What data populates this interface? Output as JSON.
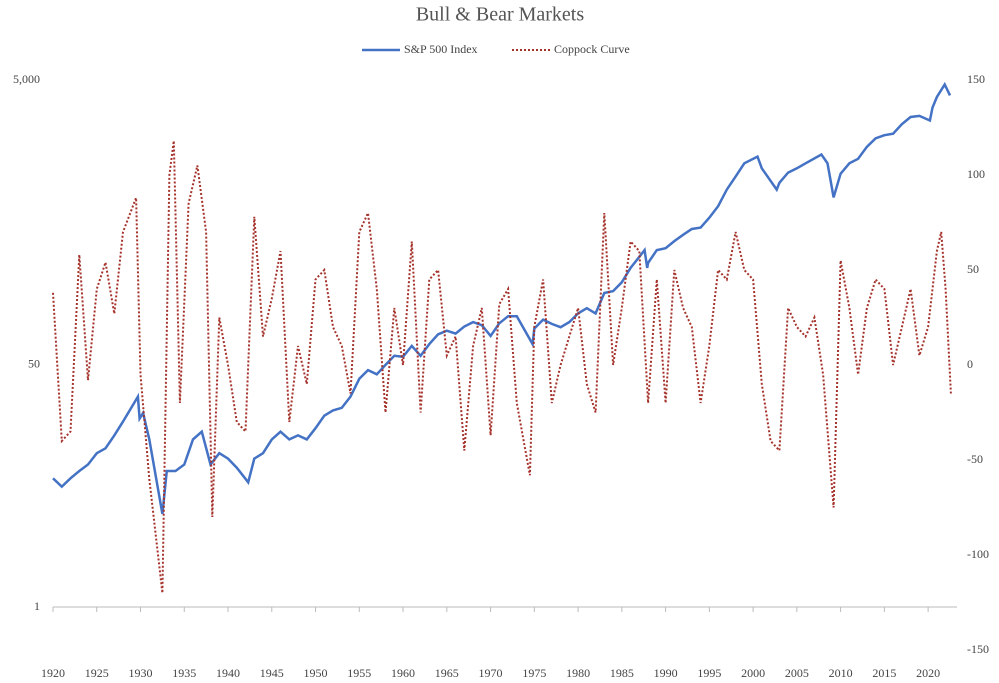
{
  "chart_data": {
    "type": "line",
    "title": "Bull & Bear Markets",
    "xlim": [
      1920,
      2023.3
    ],
    "xticks": [
      1920,
      1925,
      1930,
      1935,
      1940,
      1945,
      1950,
      1955,
      1960,
      1965,
      1970,
      1975,
      1980,
      1985,
      1990,
      1995,
      2000,
      2005,
      2010,
      2015,
      2020
    ],
    "ylim": [
      1,
      5000
    ],
    "yticks": [
      1,
      50,
      {
        "value": 5000,
        "label": "5,000"
      }
    ],
    "ylog": true,
    "y2lim": [
      -150,
      150
    ],
    "y2ticks": [
      -150,
      -100,
      -50,
      0,
      50,
      100,
      150
    ],
    "grid": false,
    "legend": "top",
    "series": [
      {
        "name": "S&P 500 Index",
        "color": "#4472c4",
        "dash": false,
        "x": [
          1920,
          1921,
          1922,
          1923,
          1924,
          1925,
          1926,
          1927,
          1928,
          1929.7,
          1929.9,
          1930.3,
          1931,
          1932.5,
          1933,
          1934,
          1935,
          1936,
          1937,
          1938,
          1939,
          1940,
          1941,
          1942.3,
          1943,
          1944,
          1945,
          1946,
          1947,
          1948,
          1949,
          1950,
          1951,
          1952,
          1953,
          1954,
          1955,
          1956,
          1957,
          1958,
          1959,
          1960,
          1961,
          1962,
          1963,
          1964,
          1965,
          1966,
          1967,
          1968,
          1969,
          1970,
          1971,
          1972,
          1973,
          1974.8,
          1975,
          1976,
          1977,
          1978,
          1979,
          1980,
          1981,
          1982,
          1983,
          1984,
          1985,
          1986,
          1987.6,
          1987.9,
          1988,
          1989,
          1990,
          1991,
          1992,
          1993,
          1994,
          1995,
          1996,
          1997,
          1998,
          1999,
          2000.5,
          2001,
          2002.7,
          2003,
          2004,
          2005,
          2006,
          2007.8,
          2008.5,
          2009.2,
          2010,
          2011,
          2012,
          2013,
          2014,
          2015,
          2016,
          2017,
          2018,
          2019,
          2020.2,
          2020.5,
          2021,
          2021.9,
          2022.5
        ],
        "values": [
          8,
          7,
          8,
          9,
          10,
          12,
          13,
          16,
          20,
          30,
          21,
          23,
          15,
          4.5,
          9,
          9,
          10,
          15,
          17,
          10,
          12,
          11,
          9.5,
          7.5,
          11,
          12,
          15,
          17,
          15,
          16,
          15,
          18,
          22,
          24,
          25,
          30,
          40,
          46,
          43,
          50,
          58,
          57,
          68,
          58,
          70,
          82,
          87,
          83,
          93,
          100,
          95,
          80,
          98,
          110,
          110,
          70,
          90,
          104,
          97,
          92,
          100,
          115,
          125,
          115,
          160,
          165,
          190,
          240,
          320,
          240,
          260,
          320,
          330,
          370,
          410,
          450,
          460,
          540,
          650,
          850,
          1050,
          1300,
          1450,
          1200,
          850,
          950,
          1120,
          1200,
          1300,
          1500,
          1300,
          750,
          1100,
          1300,
          1400,
          1700,
          1950,
          2050,
          2100,
          2450,
          2750,
          2800,
          2600,
          3200,
          3800,
          4650,
          3900
        ]
      },
      {
        "name": "Coppock Curve",
        "color": "#a5332c",
        "dash": true,
        "axis": "y2",
        "x": [
          1920,
          1921,
          1922,
          1923,
          1924,
          1925,
          1926,
          1927,
          1928,
          1929.5,
          1930,
          1931,
          1932.5,
          1933.3,
          1933.8,
          1934.5,
          1935.5,
          1936.5,
          1937.5,
          1938.2,
          1939,
          1940,
          1941,
          1942,
          1943,
          1944,
          1945,
          1946,
          1947,
          1948,
          1949,
          1950,
          1951,
          1952,
          1953,
          1954,
          1955,
          1956,
          1957,
          1958,
          1959,
          1960,
          1961,
          1962,
          1963,
          1964,
          1965,
          1966,
          1967,
          1968,
          1969,
          1970,
          1971,
          1972,
          1973,
          1974.5,
          1975,
          1976,
          1977,
          1978,
          1979,
          1980,
          1981,
          1982,
          1983,
          1984,
          1985,
          1986,
          1987,
          1988,
          1989,
          1990,
          1991,
          1992,
          1993,
          1994,
          1995,
          1996,
          1997,
          1998,
          1999,
          2000,
          2001,
          2002,
          2003,
          2004,
          2005,
          2006,
          2007,
          2008,
          2009.2,
          2010,
          2011,
          2012,
          2013,
          2014,
          2015,
          2016,
          2017,
          2018,
          2019,
          2020,
          2021,
          2021.5,
          2022,
          2022.6
        ],
        "values": [
          38,
          -40,
          -35,
          58,
          -8,
          40,
          54,
          27,
          70,
          88,
          -5,
          -60,
          -120,
          100,
          118,
          -20,
          85,
          105,
          70,
          -80,
          25,
          0,
          -30,
          -35,
          78,
          15,
          35,
          60,
          -30,
          10,
          -10,
          45,
          50,
          20,
          10,
          -15,
          70,
          80,
          40,
          -25,
          30,
          0,
          65,
          -25,
          45,
          50,
          5,
          15,
          -45,
          10,
          30,
          -37,
          32,
          40,
          -20,
          -58,
          20,
          45,
          -20,
          0,
          15,
          30,
          -10,
          -25,
          80,
          0,
          30,
          65,
          60,
          -20,
          45,
          -20,
          50,
          30,
          20,
          -20,
          10,
          50,
          45,
          70,
          50,
          45,
          -10,
          -40,
          -45,
          30,
          20,
          15,
          25,
          -5,
          -75,
          55,
          30,
          -5,
          30,
          45,
          40,
          0,
          20,
          40,
          5,
          20,
          60,
          70,
          40,
          -15
        ]
      }
    ]
  }
}
